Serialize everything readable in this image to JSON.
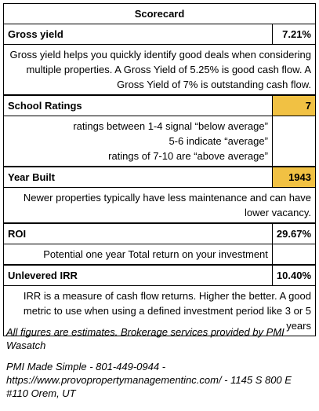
{
  "header": {
    "title": "Scorecard"
  },
  "rows": [
    {
      "label": "Gross yield",
      "value": "7.21%",
      "description": "Gross yield helps you quickly identify good deals when considering multiple properties. A Gross Yield of 5.25% is good cash flow. A Gross Yield of 7% is outstanding cash flow."
    },
    {
      "label": "School Ratings",
      "value": "7",
      "description": [
        "ratings between 1-4 signal “below average”",
        "5-6 indicate “average”",
        "ratings of 7-10 are “above average”"
      ]
    },
    {
      "label": "Year Built",
      "value": "1943",
      "description": "Newer properties typically have less maintenance and can have lower vacancy."
    },
    {
      "label": "ROI",
      "value": "29.67%",
      "description": "Potential one year Total return on your investment"
    },
    {
      "label": "Unlevered IRR",
      "value": "10.40%",
      "description": "IRR is a measure of cash flow returns. Higher the better. A good metric to use when using a defined investment period like 3 or 5 years"
    }
  ],
  "footer": {
    "note": "All figures are estimates. Brokerage services provided by PMI Wasatch",
    "contact": "PMI Made Simple - 801-449-0944 - https://www.provopropertymanagementinc.com/ - 1145 S 800 E #110 Orem, UT"
  }
}
